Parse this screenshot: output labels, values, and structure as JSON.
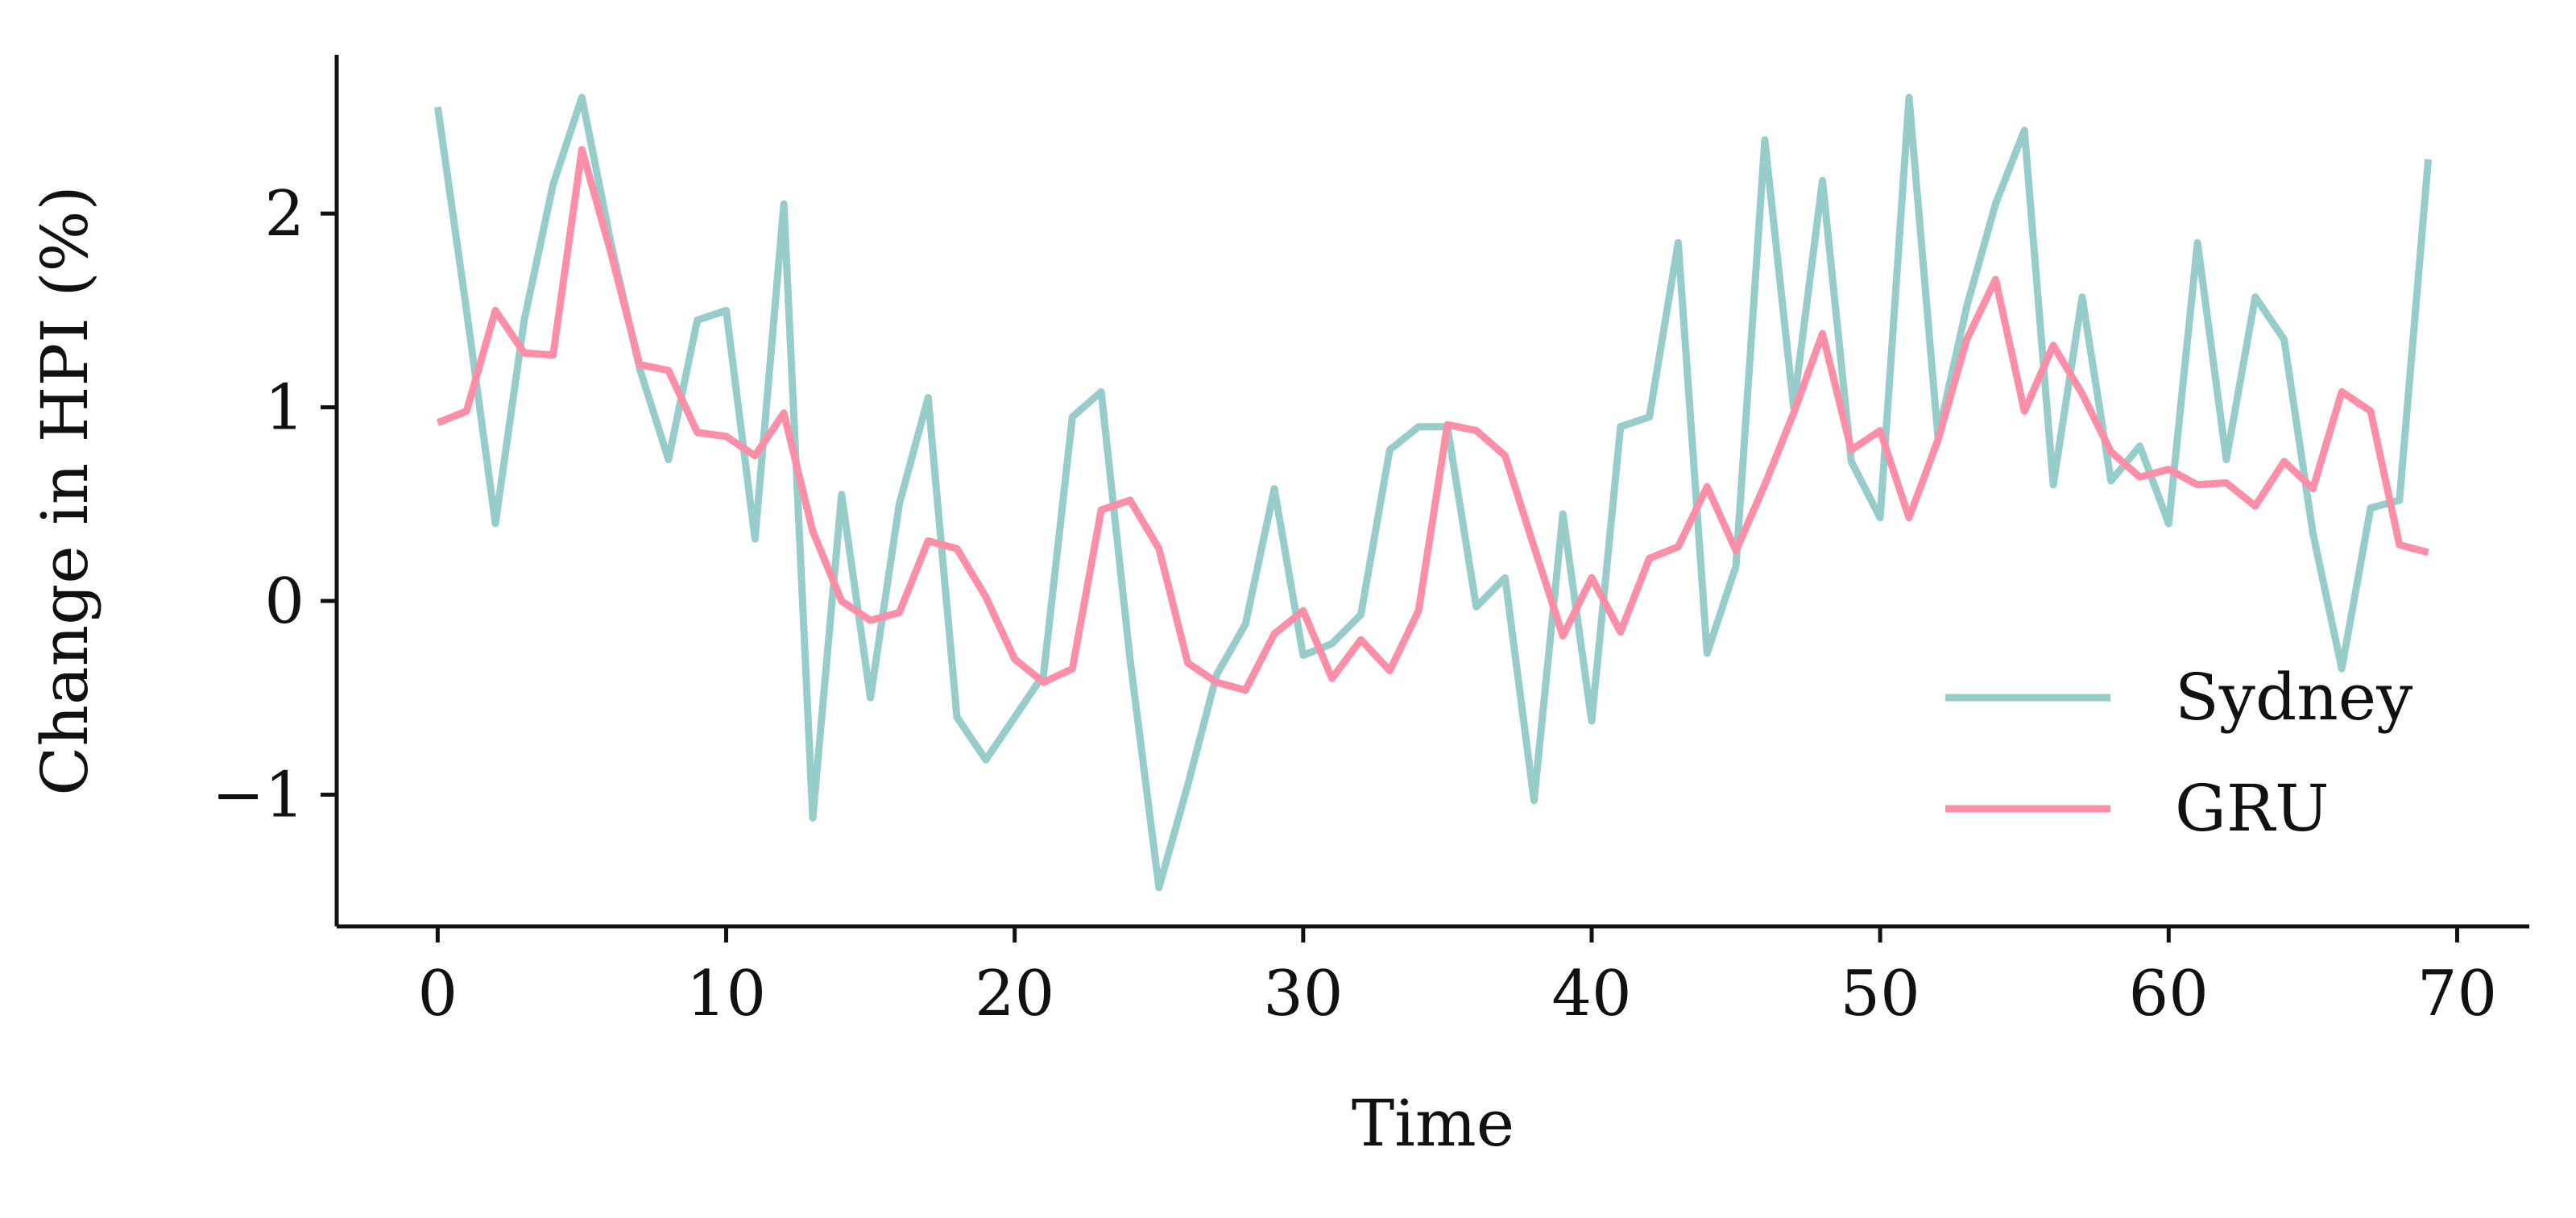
{
  "chart_data": {
    "type": "line",
    "xlabel": "Time",
    "ylabel": "Change in HPI (%)",
    "xlim": [
      -3.5,
      72.5
    ],
    "ylim": [
      -1.68,
      2.82
    ],
    "xticks": [
      0,
      10,
      20,
      30,
      40,
      50,
      60,
      70
    ],
    "yticks": [
      -1,
      0,
      1,
      2
    ],
    "ytick_labels": [
      "−1",
      "0",
      "1",
      "2"
    ],
    "grid": false,
    "legend_position": "lower-right",
    "x": [
      0,
      1,
      2,
      3,
      4,
      5,
      6,
      7,
      8,
      9,
      10,
      11,
      12,
      13,
      14,
      15,
      16,
      17,
      18,
      19,
      20,
      21,
      22,
      23,
      24,
      25,
      26,
      27,
      28,
      29,
      30,
      31,
      32,
      33,
      34,
      35,
      36,
      37,
      38,
      39,
      40,
      41,
      42,
      43,
      44,
      45,
      46,
      47,
      48,
      49,
      50,
      51,
      52,
      53,
      54,
      55,
      56,
      57,
      58,
      59,
      60,
      61,
      62,
      63,
      64,
      65,
      66,
      67,
      68,
      69
    ],
    "series": [
      {
        "name": "Sydney",
        "color": "#96cdcb",
        "values": [
          2.55,
          1.5,
          0.4,
          1.45,
          2.15,
          2.6,
          1.85,
          1.2,
          0.73,
          1.45,
          1.5,
          0.32,
          2.05,
          -1.12,
          0.55,
          -0.5,
          0.5,
          1.05,
          -0.6,
          -0.82,
          -0.6,
          -0.38,
          0.95,
          1.08,
          -0.3,
          -1.48,
          -0.95,
          -0.38,
          -0.12,
          0.58,
          -0.28,
          -0.22,
          -0.07,
          0.78,
          0.9,
          0.9,
          -0.03,
          0.12,
          -1.03,
          0.45,
          -0.62,
          0.9,
          0.95,
          1.85,
          -0.27,
          0.18,
          2.38,
          1.0,
          2.17,
          0.72,
          0.43,
          2.6,
          0.85,
          1.52,
          2.05,
          2.43,
          0.6,
          1.57,
          0.62,
          0.8,
          0.4,
          1.85,
          0.73,
          1.57,
          1.35,
          0.35,
          -0.35,
          0.48,
          0.52,
          2.28
        ]
      },
      {
        "name": "GRU",
        "color": "#fc8ea8",
        "values": [
          0.92,
          0.98,
          1.5,
          1.28,
          1.27,
          2.33,
          1.8,
          1.22,
          1.19,
          0.87,
          0.85,
          0.75,
          0.97,
          0.36,
          0.0,
          -0.1,
          -0.06,
          0.31,
          0.27,
          0.02,
          -0.3,
          -0.42,
          -0.35,
          0.47,
          0.52,
          0.27,
          -0.32,
          -0.42,
          -0.46,
          -0.17,
          -0.05,
          -0.4,
          -0.2,
          -0.36,
          -0.05,
          0.91,
          0.88,
          0.75,
          0.28,
          -0.18,
          0.12,
          -0.16,
          0.22,
          0.28,
          0.59,
          0.26,
          0.6,
          0.97,
          1.38,
          0.78,
          0.88,
          0.43,
          0.83,
          1.35,
          1.66,
          0.98,
          1.32,
          1.07,
          0.77,
          0.64,
          0.68,
          0.6,
          0.61,
          0.49,
          0.72,
          0.58,
          1.08,
          0.98,
          0.29,
          0.25
        ]
      }
    ]
  }
}
